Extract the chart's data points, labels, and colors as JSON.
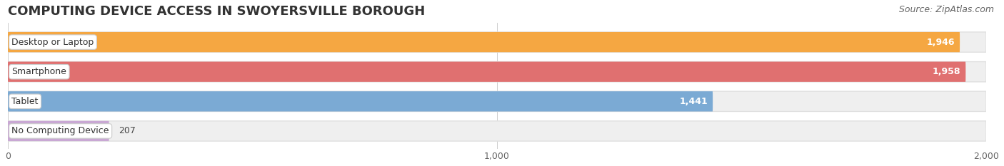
{
  "title": "COMPUTING DEVICE ACCESS IN SWOYERSVILLE BOROUGH",
  "source": "Source: ZipAtlas.com",
  "categories": [
    "Desktop or Laptop",
    "Smartphone",
    "Tablet",
    "No Computing Device"
  ],
  "values": [
    1946,
    1958,
    1441,
    207
  ],
  "bar_colors": [
    "#F5A742",
    "#E07070",
    "#7BAAD4",
    "#C9A8D4"
  ],
  "bar_labels": [
    "1,946",
    "1,958",
    "1,441",
    "207"
  ],
  "xlim": [
    0,
    2000
  ],
  "xticks": [
    0,
    1000,
    2000
  ],
  "xtick_labels": [
    "0",
    "1,000",
    "2,000"
  ],
  "background_color": "#ffffff",
  "bar_bg_color": "#efefef",
  "bar_bg_edge_color": "#e0e0e0",
  "title_fontsize": 13,
  "label_fontsize": 9,
  "value_fontsize": 9,
  "source_fontsize": 9
}
